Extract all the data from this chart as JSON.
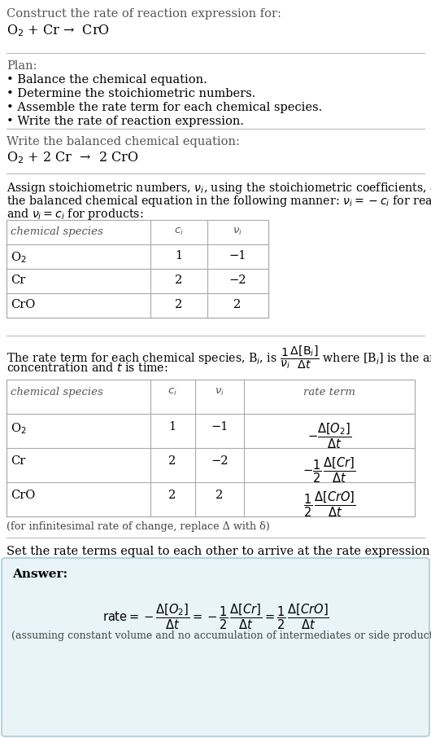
{
  "bg_color": "#ffffff",
  "text_color": "#000000",
  "answer_bg": "#e8f4f8",
  "answer_border": "#a8ccd8",
  "title_line1": "Construct the rate of reaction expression for:",
  "reaction_unbalanced": "O$_2$ + Cr →  CrO",
  "plan_header": "Plan:",
  "plan_bullets": [
    "• Balance the chemical equation.",
    "• Determine the stoichiometric numbers.",
    "• Assemble the rate term for each chemical species.",
    "• Write the rate of reaction expression."
  ],
  "balanced_header": "Write the balanced chemical equation:",
  "reaction_balanced": "O$_2$ + 2 Cr  →  2 CrO",
  "assign_text": "Assign stoichiometric numbers, $\\nu_i$, using the stoichiometric coefficients, $c_i$, from\nthe balanced chemical equation in the following manner: $\\nu_i = -c_i$ for reactants\nand $\\nu_i = c_i$ for products:",
  "table1_headers": [
    "chemical species",
    "$c_i$",
    "$\\nu_i$"
  ],
  "table1_data": [
    [
      "O$_2$",
      "1",
      "−1"
    ],
    [
      "Cr",
      "2",
      "−2"
    ],
    [
      "CrO",
      "2",
      "2"
    ]
  ],
  "rate_text_pre": "The rate term for each chemical species, B$_i$, is ",
  "rate_text_post": " where [B$_i$] is the amount",
  "rate_text2": "concentration and $t$ is time:",
  "table2_headers": [
    "chemical species",
    "$c_i$",
    "$\\nu_i$",
    "rate term"
  ],
  "table2_data_plain": [
    [
      "O$_2$",
      "1",
      "−1"
    ],
    [
      "Cr",
      "2",
      "−2"
    ],
    [
      "CrO",
      "2",
      "2"
    ]
  ],
  "table2_rate_terms": [
    "$-\\dfrac{\\Delta[O_2]}{\\Delta t}$",
    "$-\\dfrac{1}{2}\\,\\dfrac{\\Delta[Cr]}{\\Delta t}$",
    "$\\dfrac{1}{2}\\,\\dfrac{\\Delta[CrO]}{\\Delta t}$"
  ],
  "infinitesimal_note": "(for infinitesimal rate of change, replace Δ with δ)",
  "set_rate_text": "Set the rate terms equal to each other to arrive at the rate expression:",
  "answer_label": "Answer:",
  "rate_expression": "$\\mathrm{rate} = -\\dfrac{\\Delta[O_2]}{\\Delta t} = -\\dfrac{1}{2}\\,\\dfrac{\\Delta[Cr]}{\\Delta t} = \\dfrac{1}{2}\\,\\dfrac{\\Delta[CrO]}{\\Delta t}$",
  "assuming_note": "(assuming constant volume and no accumulation of intermediates or side products)"
}
